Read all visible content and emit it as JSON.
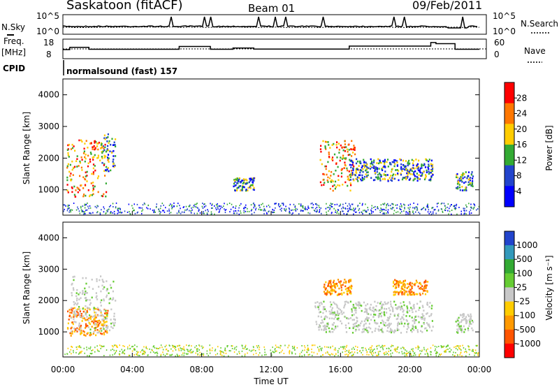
{
  "header": {
    "station": "Saskatoon (fitACF)",
    "beam": "Beam 01",
    "date": "09/Feb/2011",
    "cpid_label": "CPID",
    "cpid_value": "normalsound (fast) 157"
  },
  "noise_panel": {
    "left_label": "N.Sky",
    "right_label": "N.Search",
    "left_ticks": [
      "10^5",
      "10^0"
    ],
    "right_ticks": [
      "10^5",
      "10^0"
    ]
  },
  "freq_panel": {
    "left_label_1": "Freq.",
    "left_label_2": "[MHz]",
    "right_label": "Nave",
    "left_ticks": [
      "18",
      "8"
    ],
    "right_ticks": [
      "60",
      "0"
    ]
  },
  "colorbars": {
    "power": {
      "label": "Power [dB]",
      "ticks": [
        "28",
        "24",
        "20",
        "16",
        "12",
        "8",
        "4"
      ],
      "colors": [
        "#ff0000",
        "#ff7700",
        "#ffcc00",
        "#33aa33",
        "#2244cc",
        "#0000ff"
      ]
    },
    "velocity": {
      "label": "Velocity [m s⁻¹]",
      "ticks": [
        "1000",
        "500",
        "100",
        "25",
        "-25",
        "-100",
        "-500",
        "-1000"
      ],
      "colors": [
        "#2244cc",
        "#3399bb",
        "#33aa33",
        "#66cc33",
        "#c8c8c8",
        "#ffcc00",
        "#ff9900",
        "#ff5500",
        "#ff0000"
      ]
    }
  },
  "chart_data": {
    "type": "heatmap",
    "xlabel": "Time UT",
    "ylabel": "Slant Range [km]",
    "x_ticks": [
      "00:00",
      "04:00",
      "08:00",
      "12:00",
      "16:00",
      "20:00",
      "00:00"
    ],
    "y_ticks": [
      "1000",
      "2000",
      "3000",
      "4000"
    ],
    "xlim": [
      0,
      24
    ],
    "ylim": [
      200,
      4500
    ],
    "power_regions": [
      {
        "t0": 0.2,
        "t1": 2.6,
        "r0": 800,
        "r1": 2600,
        "level": "high"
      },
      {
        "t0": 2.2,
        "t1": 3.0,
        "r0": 1600,
        "r1": 2800,
        "level": "mid"
      },
      {
        "t0": 9.8,
        "t1": 11.0,
        "r0": 1000,
        "r1": 1400,
        "level": "mid"
      },
      {
        "t0": 14.8,
        "t1": 16.8,
        "r0": 1000,
        "r1": 2600,
        "level": "high"
      },
      {
        "t0": 16.5,
        "t1": 21.3,
        "r0": 1300,
        "r1": 2000,
        "level": "mid"
      },
      {
        "t0": 22.6,
        "t1": 23.6,
        "r0": 1000,
        "r1": 1600,
        "level": "mid"
      }
    ],
    "velocity_regions": [
      {
        "t0": 0.2,
        "t1": 2.6,
        "r0": 900,
        "r1": 1800,
        "sign": "negative"
      },
      {
        "t0": 0.4,
        "t1": 3.0,
        "r0": 1000,
        "r1": 2800,
        "sign": "low"
      },
      {
        "t0": 14.5,
        "t1": 21.3,
        "r0": 1000,
        "r1": 2000,
        "sign": "low"
      },
      {
        "t0": 15.0,
        "t1": 16.6,
        "r0": 2200,
        "r1": 2700,
        "sign": "negative"
      },
      {
        "t0": 19.0,
        "t1": 21.0,
        "r0": 2200,
        "r1": 2700,
        "sign": "negative"
      },
      {
        "t0": 22.6,
        "t1": 23.6,
        "r0": 1000,
        "r1": 1600,
        "sign": "low"
      }
    ],
    "freq_steps": [
      {
        "t0": 0,
        "t1": 0.4,
        "freq": 11.5
      },
      {
        "t0": 0.4,
        "t1": 1.5,
        "freq": 13.5
      },
      {
        "t0": 1.5,
        "t1": 6.7,
        "freq": 11.8
      },
      {
        "t0": 6.7,
        "t1": 8.5,
        "freq": 14.2
      },
      {
        "t0": 8.5,
        "t1": 9.8,
        "freq": 11.8
      },
      {
        "t0": 9.8,
        "t1": 11.0,
        "freq": 12.8
      },
      {
        "t0": 11.0,
        "t1": 16.5,
        "freq": 12.0
      },
      {
        "t0": 16.5,
        "t1": 21.2,
        "freq": 14.5
      },
      {
        "t0": 21.2,
        "t1": 21.5,
        "freq": 17.5
      },
      {
        "t0": 21.5,
        "t1": 22.6,
        "freq": 16.5
      },
      {
        "t0": 22.6,
        "t1": 24.0,
        "freq": 11.8
      }
    ]
  }
}
